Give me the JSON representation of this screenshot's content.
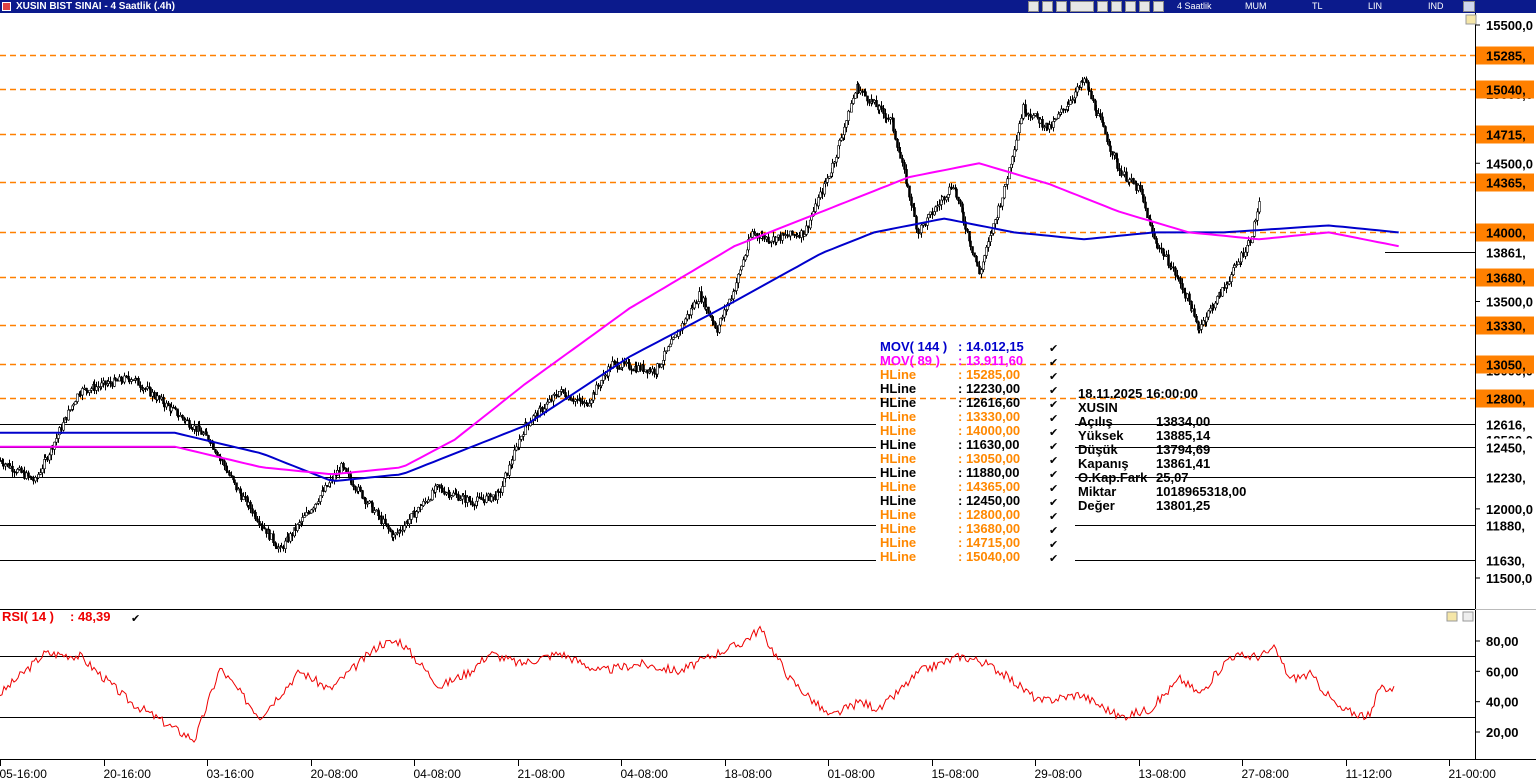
{
  "window": {
    "title": "XUSIN BIST SINAI - 4 Saatlik (.4h)",
    "toolbar": [
      "4 Saatlik",
      "MUM",
      "TL",
      "LIN",
      "IND"
    ]
  },
  "chart_data": [
    {
      "type": "candlestick",
      "symbol": "XUSIN",
      "timeframe": "4h",
      "y_axis": {
        "min": 11400,
        "max": 15600,
        "ticks": [
          11500,
          12000,
          12500,
          13000,
          13500,
          14000,
          14500,
          15000,
          15500
        ],
        "tick_labels": [
          "11500,0",
          "12000,0",
          "12500,0",
          "13000,0",
          "13500,0",
          "14000,0",
          "14500,0",
          "15000,0",
          "15500,0"
        ]
      },
      "x_axis": {
        "tick_labels": [
          "05-16:00",
          "20-16:00",
          "03-16:00",
          "20-08:00",
          "04-08:00",
          "21-08:00",
          "04-08:00",
          "18-08:00",
          "01-08:00",
          "15-08:00",
          "29-08:00",
          "13-08:00",
          "27-08:00",
          "11-12:00",
          "21-00:00"
        ]
      },
      "approx_close_path": {
        "index": [
          0,
          20,
          45,
          75,
          95,
          120,
          135,
          160,
          195,
          225,
          250,
          270,
          285,
          300,
          320,
          335,
          350,
          375,
          400,
          410,
          420,
          430,
          440,
          460,
          475,
          490,
          510,
          525,
          545,
          560,
          575,
          585,
          600,
          620,
          640,
          652,
          660,
          670,
          680,
          685,
          690,
          700,
          715,
          720
        ],
        "close": [
          12350,
          12200,
          12850,
          12950,
          12750,
          12500,
          12150,
          11700,
          12300,
          11800,
          12150,
          12050,
          12100,
          12600,
          12850,
          12750,
          13050,
          13000,
          13550,
          13300,
          13600,
          14000,
          13950,
          14000,
          14450,
          15050,
          14800,
          14000,
          14350,
          13700,
          14350,
          14900,
          14750,
          15100,
          14450,
          14300,
          13950,
          13750,
          13500,
          13300,
          13400,
          13600,
          13950,
          14200
        ]
      },
      "series": [
        {
          "name": "MOV( 144 )",
          "value_label": "14.012,15",
          "color": "#0000cc",
          "index": [
            0,
            100,
            150,
            190,
            230,
            260,
            300,
            360,
            420,
            470,
            500,
            540,
            580,
            620,
            660,
            700,
            760,
            800
          ],
          "values": [
            12550,
            12550,
            12400,
            12200,
            12250,
            12400,
            12600,
            13100,
            13500,
            13850,
            14000,
            14100,
            14000,
            13950,
            14000,
            14000,
            14050,
            14000
          ]
        },
        {
          "name": "MOV( 89 )",
          "value_label": "13.911,60",
          "color": "#ff00ff",
          "index": [
            0,
            100,
            150,
            190,
            230,
            260,
            300,
            360,
            420,
            470,
            520,
            560,
            600,
            640,
            680,
            720,
            760,
            800
          ],
          "values": [
            12450,
            12450,
            12300,
            12250,
            12300,
            12500,
            12900,
            13450,
            13900,
            14150,
            14400,
            14500,
            14350,
            14150,
            14000,
            13950,
            14000,
            13900
          ]
        }
      ],
      "hlines_labeled": [
        {
          "value": 15285,
          "label": "15285,"
        },
        {
          "value": 15040,
          "label": "15040,"
        },
        {
          "value": 14715,
          "label": "14715,"
        },
        {
          "value": 14365,
          "label": "14365,"
        },
        {
          "value": 14000,
          "label": "14000,"
        },
        {
          "value": 13680,
          "label": "13680,"
        },
        {
          "value": 13330,
          "label": "13330,"
        },
        {
          "value": 13050,
          "label": "13050,"
        },
        {
          "value": 12800,
          "label": "12800,"
        },
        {
          "value": 12616.6,
          "label": "12616,"
        },
        {
          "value": 12450,
          "label": "12450,"
        },
        {
          "value": 12230,
          "label": "12230,"
        },
        {
          "value": 11880,
          "label": "11880,"
        },
        {
          "value": 11630,
          "label": "11630,"
        }
      ],
      "last_value": {
        "value": 13861.41,
        "label": "13861,"
      },
      "legend": [
        {
          "name": "MOV( 144 )",
          "value": ": 14.012,15",
          "color": "#0000cc"
        },
        {
          "name": "MOV( 89 )",
          "value": ": 13.911,60",
          "color": "#ff00ff"
        },
        {
          "name": "HLine",
          "value": ": 15285,00",
          "color": "#ff8800"
        },
        {
          "name": "HLine",
          "value": ": 12230,00",
          "color": "#000000"
        },
        {
          "name": "HLine",
          "value": ": 12616,60",
          "color": "#000000"
        },
        {
          "name": "HLine",
          "value": ": 13330,00",
          "color": "#ff8800"
        },
        {
          "name": "HLine",
          "value": ": 14000,00",
          "color": "#ff8800"
        },
        {
          "name": "HLine",
          "value": ": 11630,00",
          "color": "#000000"
        },
        {
          "name": "HLine",
          "value": ": 13050,00",
          "color": "#ff8800"
        },
        {
          "name": "HLine",
          "value": ": 11880,00",
          "color": "#000000"
        },
        {
          "name": "HLine",
          "value": ": 14365,00",
          "color": "#ff8800"
        },
        {
          "name": "HLine",
          "value": ": 12450,00",
          "color": "#000000"
        },
        {
          "name": "HLine",
          "value": ": 12800,00",
          "color": "#ff8800"
        },
        {
          "name": "HLine",
          "value": ": 13680,00",
          "color": "#ff8800"
        },
        {
          "name": "HLine",
          "value": ": 14715,00",
          "color": "#ff8800"
        },
        {
          "name": "HLine",
          "value": ": 15040,00",
          "color": "#ff8800"
        }
      ],
      "info_box": {
        "datetime": "18.11.2025  16:00:00",
        "symbol": "XUSIN",
        "rows": [
          {
            "label": "Açılış",
            "value": "13834,00"
          },
          {
            "label": "Yüksek",
            "value": "13885,14"
          },
          {
            "label": "Düşük",
            "value": "13794,69"
          },
          {
            "label": "Kapanış",
            "value": "13861,41"
          },
          {
            "label": "O.Kap.Fark",
            "value": "25,07"
          },
          {
            "label": "Miktar",
            "value": "1018965318,00"
          },
          {
            "label": "Değer",
            "value": "13801,25"
          }
        ]
      }
    },
    {
      "type": "line",
      "title": "RSI( 14 )",
      "value_label": ": 48,39",
      "color": "#ee0000",
      "y_axis": {
        "min": 7,
        "max": 92,
        "ticks": [
          20,
          40,
          60,
          80
        ],
        "tick_labels": [
          "20,00",
          "40,00",
          "60,00",
          "80,00"
        ]
      },
      "reference_lines": [
        30,
        70
      ],
      "x": [
        0,
        45,
        80,
        130,
        180,
        195,
        220,
        260,
        300,
        330,
        380,
        400,
        440,
        470,
        490,
        520,
        560,
        600,
        640,
        680,
        720,
        740,
        760,
        790,
        830,
        860,
        880,
        920,
        960,
        980,
        1000,
        1040,
        1080,
        1120,
        1150,
        1180,
        1200,
        1230,
        1260,
        1275,
        1290,
        1310,
        1340,
        1370,
        1380,
        1395
      ],
      "values": [
        45,
        72,
        70,
        40,
        20,
        15,
        62,
        30,
        60,
        48,
        78,
        80,
        50,
        60,
        72,
        65,
        72,
        60,
        65,
        60,
        73,
        78,
        88,
        55,
        30,
        40,
        35,
        60,
        70,
        67,
        60,
        40,
        45,
        30,
        35,
        55,
        45,
        70,
        70,
        75,
        55,
        58,
        35,
        30,
        50,
        48
      ]
    }
  ]
}
